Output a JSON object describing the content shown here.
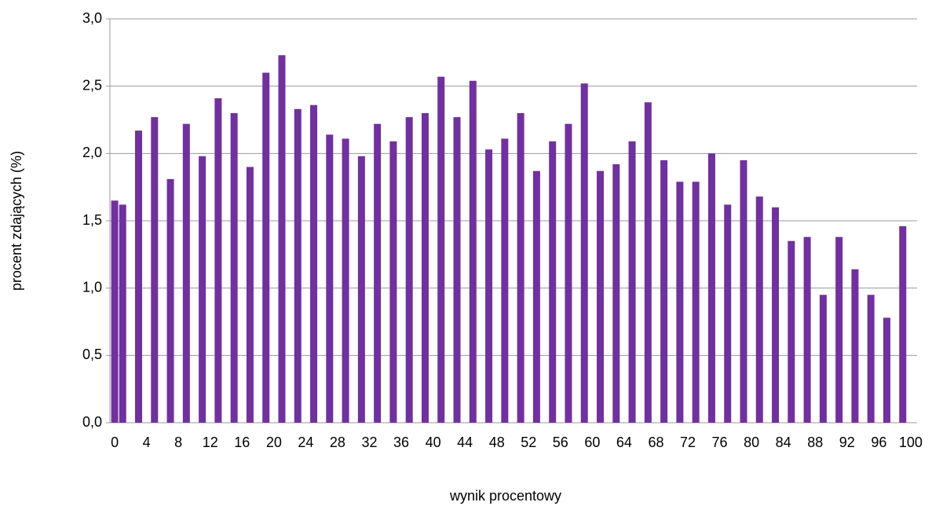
{
  "chart_data": {
    "type": "bar",
    "xlabel": "wynik procentowy",
    "ylabel": "procent  zdających (%)",
    "x": [
      0,
      1,
      3,
      5,
      7,
      9,
      11,
      13,
      15,
      17,
      19,
      21,
      23,
      25,
      27,
      29,
      31,
      33,
      35,
      37,
      39,
      41,
      43,
      45,
      47,
      49,
      51,
      53,
      55,
      57,
      59,
      61,
      63,
      65,
      67,
      69,
      71,
      73,
      75,
      77,
      79,
      81,
      83,
      85,
      87,
      89,
      91,
      93,
      95,
      97,
      99
    ],
    "values": [
      1.65,
      1.62,
      2.17,
      2.27,
      1.81,
      2.22,
      1.98,
      2.41,
      2.3,
      1.9,
      2.6,
      2.73,
      2.33,
      2.36,
      2.14,
      2.11,
      1.98,
      2.22,
      2.09,
      2.27,
      2.3,
      2.57,
      2.27,
      2.54,
      2.03,
      2.11,
      2.3,
      1.87,
      2.09,
      2.22,
      2.52,
      1.87,
      1.92,
      2.09,
      2.38,
      1.95,
      1.79,
      1.79,
      2.0,
      1.62,
      1.95,
      1.68,
      1.6,
      1.35,
      1.38,
      0.95,
      1.38,
      1.14,
      0.95,
      0.78,
      1.46
    ],
    "color": "#7030a0",
    "xlim": [
      -0.6,
      100.8
    ],
    "xticks": [
      0,
      4,
      8,
      12,
      16,
      20,
      24,
      28,
      32,
      36,
      40,
      44,
      48,
      52,
      56,
      60,
      64,
      68,
      72,
      76,
      80,
      84,
      88,
      92,
      96,
      100
    ],
    "ylim": [
      0,
      3
    ],
    "yticks": [
      {
        "value": 0,
        "label": "0,0"
      },
      {
        "value": 0.5,
        "label": "0,5"
      },
      {
        "value": 1,
        "label": "1,0"
      },
      {
        "value": 1.5,
        "label": "1,5"
      },
      {
        "value": 2,
        "label": "2,0"
      },
      {
        "value": 2.5,
        "label": "2,5"
      },
      {
        "value": 3,
        "label": "3,0"
      }
    ],
    "grid": true
  }
}
